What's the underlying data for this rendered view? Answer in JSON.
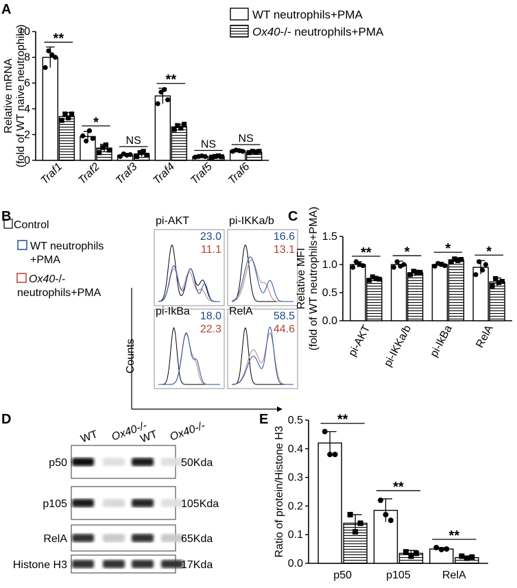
{
  "panels": {
    "A": {
      "letter": "A"
    },
    "B": {
      "letter": "B"
    },
    "C": {
      "letter": "C"
    },
    "D": {
      "letter": "D"
    },
    "E": {
      "letter": "E"
    }
  },
  "legend_A": {
    "wt": "WT neutrophils+PMA",
    "ko_italic": "Ox40",
    "ko_rest": "-/- neutrophils+PMA"
  },
  "legend_B": {
    "control": "Control",
    "wt_line1": "WT neutrophils",
    "wt_line2": "+PMA",
    "ko_italic": "Ox40",
    "ko_rest": "-/-",
    "ko_line2": "neutrophils+PMA"
  },
  "colors": {
    "control": "#000000",
    "wt": "#1f4fa0",
    "ko": "#c0392b",
    "wt_number": "#1a4a8a",
    "ko_number": "#b5402f",
    "ko_trace": "#b98a86"
  },
  "flow": {
    "ylabel": "Counts",
    "panels": [
      {
        "title": "pi-AKT",
        "wt_value": "23.0",
        "ko_value": "11.1"
      },
      {
        "title": "pi-IKKa/b",
        "wt_value": "16.6",
        "ko_value": "13.1"
      },
      {
        "title": "pi-IkBa",
        "wt_value": "18.0",
        "ko_value": "22.3"
      },
      {
        "title": "RelA",
        "wt_value": "58.5",
        "ko_value": "44.6"
      }
    ]
  },
  "western": {
    "lanes": [
      {
        "label": "WT",
        "italic": false
      },
      {
        "label": "Ox40-/-",
        "italic": true
      },
      {
        "label": "WT",
        "italic": false
      },
      {
        "label": "Ox40-/-",
        "italic": true
      }
    ],
    "rows": [
      {
        "protein": "p50",
        "size": "50Kda",
        "intensity": [
          1,
          0.05,
          0.95,
          0.05
        ]
      },
      {
        "protein": "p105",
        "size": "105Kda",
        "intensity": [
          0.95,
          0.08,
          0.9,
          0.05
        ]
      },
      {
        "protein": "RelA",
        "size": "65Kda",
        "intensity": [
          0.85,
          0.15,
          0.85,
          0.15
        ]
      },
      {
        "protein": "Histone H3",
        "size": "17Kda",
        "intensity": [
          0.85,
          0.85,
          0.85,
          0.85
        ]
      }
    ]
  },
  "chart_data": [
    {
      "panel": "A",
      "type": "bar",
      "ylabel_line1": "Relative mRNA",
      "ylabel_line2": "(fold of WT naive neutrophils)",
      "ylim": [
        0,
        10
      ],
      "yticks": [
        "0",
        "2",
        "4",
        "6",
        "8",
        "10"
      ],
      "categories": [
        "Traf1",
        "Traf2",
        "Traf3",
        "Traf4",
        "Traf5",
        "Traf6"
      ],
      "series": [
        {
          "name": "WT neutrophils+PMA",
          "values": [
            8.0,
            1.85,
            0.4,
            5.0,
            0.3,
            0.75
          ],
          "errors": [
            0.8,
            0.4,
            0.1,
            0.6,
            0.1,
            0.1
          ],
          "points": [
            [
              7.2,
              8.5,
              8.2,
              8.0
            ],
            [
              1.9,
              1.5,
              2.3,
              1.7
            ],
            [
              0.3,
              0.5,
              0.4,
              0.45
            ],
            [
              4.4,
              5.3,
              5.5,
              4.7
            ],
            [
              0.25,
              0.3,
              0.35,
              0.3
            ],
            [
              0.7,
              0.8,
              0.75,
              0.7
            ]
          ]
        },
        {
          "name": "Ox40-/- neutrophils+PMA",
          "values": [
            3.4,
            0.95,
            0.5,
            2.6,
            0.3,
            0.65
          ],
          "errors": [
            0.3,
            0.3,
            0.2,
            0.2,
            0.1,
            0.1
          ],
          "points": [
            [
              3.1,
              3.6,
              3.3,
              3.6
            ],
            [
              0.6,
              1.0,
              1.2,
              0.8
            ],
            [
              0.3,
              0.6,
              0.7,
              0.4
            ],
            [
              2.4,
              2.7,
              2.5,
              2.8
            ],
            [
              0.25,
              0.3,
              0.35,
              0.28
            ],
            [
              0.6,
              0.7,
              0.65,
              0.7
            ]
          ]
        }
      ],
      "significance": [
        "**",
        "*",
        "NS",
        "**",
        "NS",
        "NS"
      ]
    },
    {
      "panel": "C",
      "type": "bar",
      "ylabel_line1": "Relative MFI",
      "ylabel_line2": "(fold of WT neutrophils+PMA)",
      "ylim": [
        0,
        1.5
      ],
      "yticks": [
        "0.0",
        "0.5",
        "1.0",
        "1.5"
      ],
      "categories": [
        "pi-AKT",
        "pi-IKKa/b",
        "pi-IkBa",
        "RelA"
      ],
      "series": [
        {
          "name": "WT neutrophils+PMA",
          "values": [
            1.0,
            1.0,
            1.0,
            0.95
          ],
          "errors": [
            0.05,
            0.06,
            0.04,
            0.12
          ],
          "points": [
            [
              0.95,
              1.05,
              1.0,
              0.98
            ],
            [
              0.95,
              1.05,
              0.97,
              1.0
            ],
            [
              0.97,
              1.02,
              1.0,
              0.98
            ],
            [
              0.82,
              1.05,
              0.9,
              1.0
            ]
          ]
        },
        {
          "name": "Ox40-/- neutrophils+PMA",
          "values": [
            0.75,
            0.85,
            1.08,
            0.69
          ],
          "errors": [
            0.04,
            0.05,
            0.04,
            0.07
          ],
          "points": [
            [
              0.72,
              0.78,
              0.75,
              0.74
            ],
            [
              0.82,
              0.88,
              0.85,
              0.86
            ],
            [
              1.05,
              1.1,
              1.07,
              1.09
            ],
            [
              0.62,
              0.75,
              0.68,
              0.7
            ]
          ]
        }
      ],
      "significance": [
        "**",
        "*",
        "*",
        "*"
      ]
    },
    {
      "panel": "E",
      "type": "bar",
      "ylabel": "Ratio of protein/Histone H3",
      "ylim": [
        0,
        0.5
      ],
      "yticks": [
        "0.0",
        "0.1",
        "0.2",
        "0.3",
        "0.4",
        "0.5"
      ],
      "categories": [
        "p50",
        "p105",
        "RelA"
      ],
      "series": [
        {
          "name": "WT",
          "values": [
            0.42,
            0.185,
            0.05
          ],
          "errors": [
            0.04,
            0.04,
            0.005
          ],
          "points": [
            [
              0.46,
              0.38,
              0.38
            ],
            [
              0.22,
              0.17,
              0.15
            ],
            [
              0.055,
              0.048,
              0.05
            ]
          ]
        },
        {
          "name": "Ox40-/-",
          "values": [
            0.14,
            0.035,
            0.02
          ],
          "errors": [
            0.03,
            0.01,
            0.005
          ],
          "points": [
            [
              0.17,
              0.11,
              0.14
            ],
            [
              0.04,
              0.025,
              0.035
            ],
            [
              0.025,
              0.018,
              0.022
            ]
          ]
        }
      ],
      "significance": [
        "**",
        "**",
        "**"
      ]
    }
  ]
}
